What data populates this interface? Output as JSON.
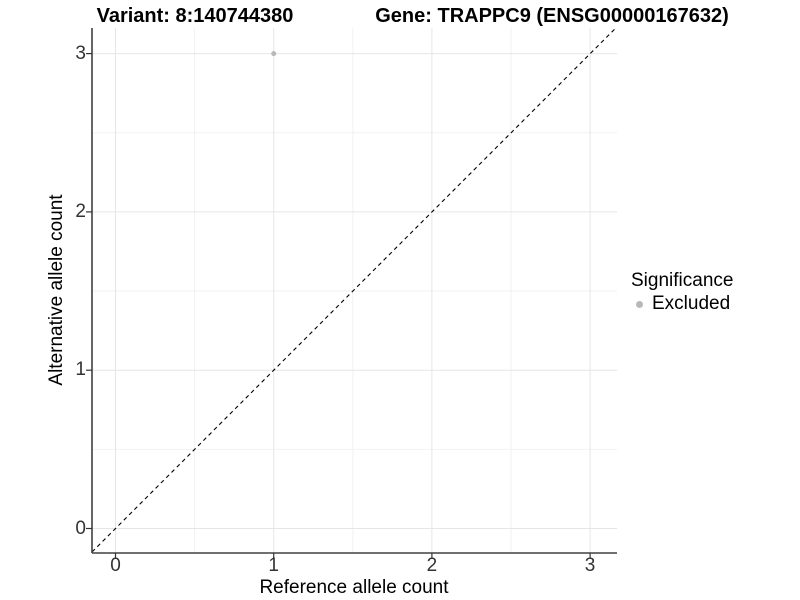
{
  "plot": {
    "title_left": "Variant: 8:140744380",
    "title_right": "Gene: TRAPPC9 (ENSG00000167632)"
  },
  "chart_data": {
    "type": "scatter",
    "title": "Variant: 8:140744380 | Gene: TRAPPC9 (ENSG00000167632)",
    "xlabel": "Reference allele count",
    "ylabel": "Alternative allele count",
    "xlim": [
      -0.15,
      3.15
    ],
    "ylim": [
      -0.15,
      3.15
    ],
    "x_ticks": [
      "0",
      "1",
      "2",
      "3"
    ],
    "y_ticks": [
      "0",
      "1",
      "2",
      "3"
    ],
    "grid": {
      "major": true,
      "minor": true,
      "major_color": "#e6e6e6",
      "minor_color": "#f2f2f2"
    },
    "points": [
      {
        "x": 1,
        "y": 3,
        "series": "Excluded",
        "color": "#b8b8b8",
        "radius": 2.5
      }
    ],
    "reference_line": {
      "equation": "y = x",
      "style": "dashed",
      "color": "#000000"
    },
    "legend": {
      "title": "Significance",
      "position": "right",
      "entries": [
        {
          "label": "Excluded",
          "color": "#b8b8b8",
          "marker": "circle"
        }
      ]
    }
  },
  "colors": {
    "background": "#ffffff",
    "axis_line": "#404040",
    "tick_label": "#333333",
    "point_gray": "#b8b8b8"
  }
}
